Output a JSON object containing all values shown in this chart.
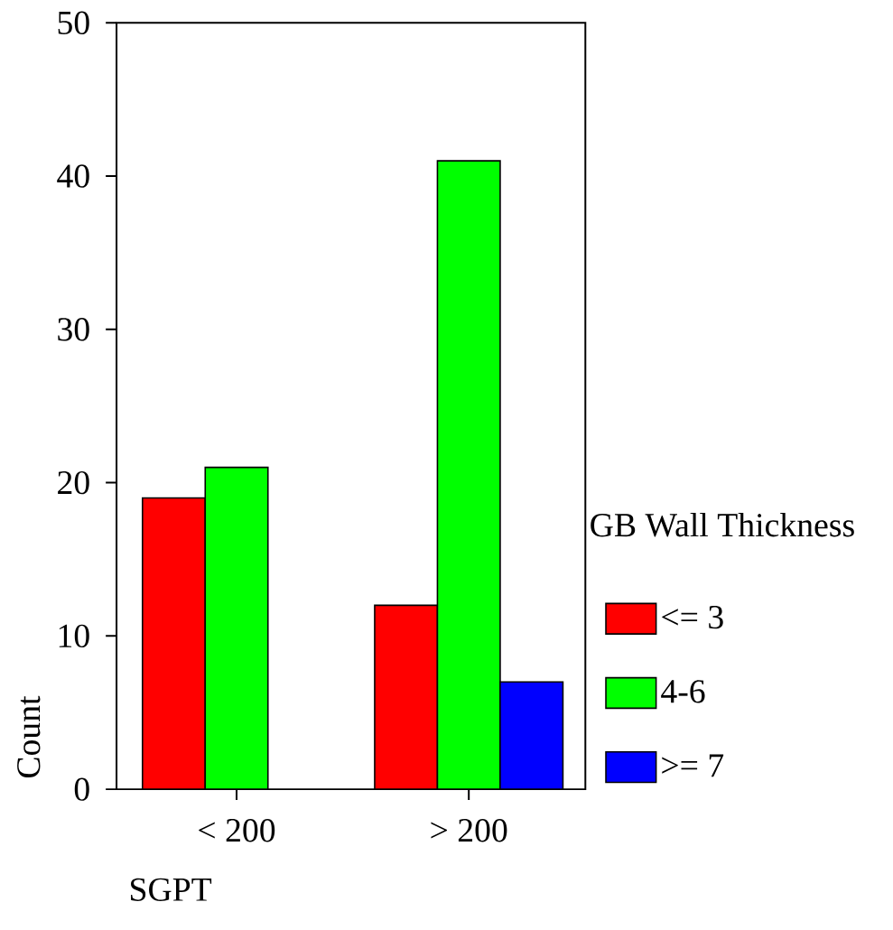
{
  "chart_data": {
    "type": "bar",
    "xlabel": "SGPT",
    "ylabel": "Count",
    "legend_title": "GB Wall Thickness",
    "categories": [
      "< 200",
      "> 200"
    ],
    "series": [
      {
        "name": "<= 3",
        "color": "#ff0000",
        "values": [
          19,
          12
        ]
      },
      {
        "name": "4-6",
        "color": "#00ff00",
        "values": [
          21,
          41
        ]
      },
      {
        "name": ">= 7",
        "color": "#0000ff",
        "values": [
          null,
          7
        ]
      }
    ],
    "ylim": [
      0,
      50
    ],
    "yticks": [
      0,
      10,
      20,
      30,
      40,
      50
    ],
    "legend": "right",
    "grid": false
  }
}
